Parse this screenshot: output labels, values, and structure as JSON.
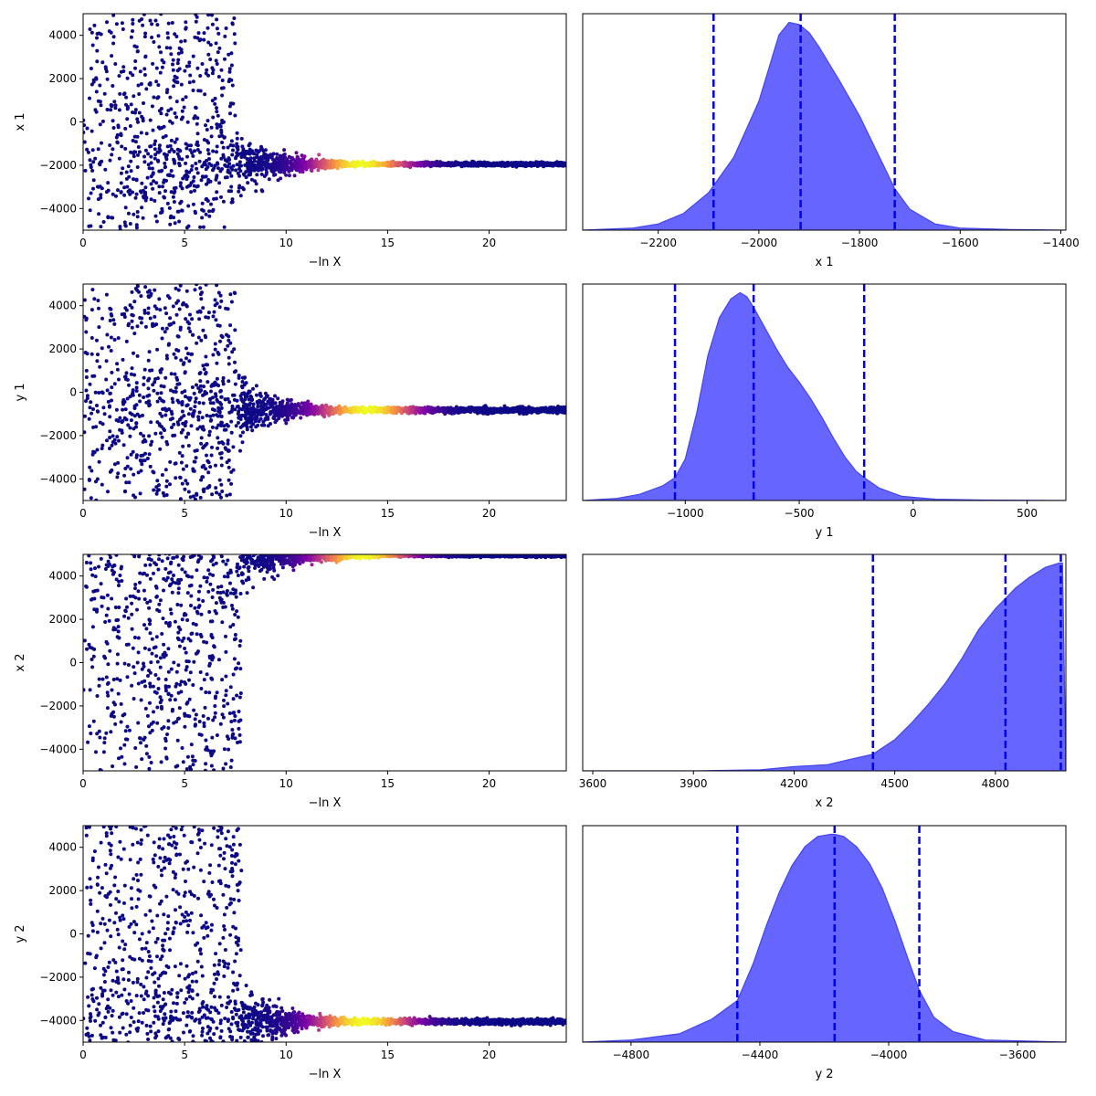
{
  "chart_data": [
    {
      "type": "scatter",
      "panel": "trace-x1",
      "xlabel": "−ln X",
      "ylabel": "x 1",
      "xlim": [
        0,
        23.8
      ],
      "ylim": [
        -5000,
        5000
      ],
      "xticks": [
        0,
        5,
        10,
        15,
        20
      ],
      "yticks": [
        -4000,
        -2000,
        0,
        2000,
        4000
      ],
      "colormap": [
        "#0d0887",
        "#7e03a8",
        "#cc4778",
        "#f89540",
        "#f0f921"
      ],
      "trace": {
        "x_max": 23.8,
        "x_branch": 7.5,
        "x_peak": 13.7,
        "converge": -1950,
        "spread_low": 3000,
        "spread_high": 7000,
        "tail_width": 80
      },
      "tick_labels_y": [
        "4000",
        "2000",
        "0",
        "−2000",
        "−4000"
      ]
    },
    {
      "type": "scatter",
      "panel": "trace-y1",
      "xlabel": "−ln X",
      "ylabel": "y 1",
      "xlim": [
        0,
        23.8
      ],
      "ylim": [
        -5000,
        5000
      ],
      "xticks": [
        0,
        5,
        10,
        15,
        20
      ],
      "yticks": [
        -4000,
        -2000,
        0,
        2000,
        4000
      ],
      "colormap": [
        "#0d0887",
        "#7e03a8",
        "#cc4778",
        "#f89540",
        "#f0f921"
      ],
      "trace": {
        "x_max": 23.8,
        "x_branch": 7.5,
        "x_peak": 14.0,
        "converge": -820,
        "spread_low": 4200,
        "spread_high": 5800,
        "tail_width": 120
      },
      "tick_labels_y": [
        "4000",
        "2000",
        "0",
        "−2000",
        "−4000"
      ]
    },
    {
      "type": "scatter",
      "panel": "trace-x2",
      "xlabel": "−ln X",
      "ylabel": "x 2",
      "xlim": [
        0,
        23.8
      ],
      "ylim": [
        -5000,
        5000
      ],
      "xticks": [
        0,
        5,
        10,
        15,
        20
      ],
      "yticks": [
        -4000,
        -2000,
        0,
        2000,
        4000
      ],
      "colormap": [
        "#0d0887",
        "#7e03a8",
        "#cc4778",
        "#f89540",
        "#f0f921"
      ],
      "trace": {
        "x_max": 23.8,
        "x_branch": 7.8,
        "x_peak": 13.8,
        "converge": 4950,
        "spread_low": 9900,
        "spread_high": 100,
        "tail_width": 60
      },
      "tick_labels_y": [
        "4000",
        "2000",
        "0",
        "−2000",
        "−4000"
      ]
    },
    {
      "type": "scatter",
      "panel": "trace-y2",
      "xlabel": "−ln X",
      "ylabel": "y 2",
      "xlim": [
        0,
        23.8
      ],
      "ylim": [
        -5000,
        5000
      ],
      "xticks": [
        0,
        5,
        10,
        15,
        20
      ],
      "yticks": [
        -4000,
        -2000,
        0,
        2000,
        4000
      ],
      "colormap": [
        "#0d0887",
        "#7e03a8",
        "#cc4778",
        "#f89540",
        "#f0f921"
      ],
      "trace": {
        "x_max": 23.8,
        "x_branch": 7.8,
        "x_peak": 13.8,
        "converge": -4050,
        "spread_low": 950,
        "spread_high": 9000,
        "tail_width": 120
      },
      "tick_labels_y": [
        "4000",
        "2000",
        "0",
        "−2000",
        "−4000"
      ]
    },
    {
      "type": "area",
      "panel": "posterior-x1",
      "xlabel": "x 1",
      "xlim": [
        -2350,
        -1390
      ],
      "xticks": [
        -2200,
        -2000,
        -1800,
        -1600,
        -1400
      ],
      "tick_labels_x": [
        "−2200",
        "−2000",
        "−1800",
        "−1600",
        "−1400"
      ],
      "fill_color": "#6666ff",
      "line_color": "#4444ee",
      "quantile_color": "#0000ee",
      "quantiles": [
        -2090,
        -1917,
        -1730
      ],
      "density": {
        "x": [
          -2350,
          -2250,
          -2200,
          -2150,
          -2100,
          -2050,
          -2000,
          -1980,
          -1960,
          -1940,
          -1920,
          -1900,
          -1880,
          -1860,
          -1840,
          -1800,
          -1760,
          -1730,
          -1700,
          -1650,
          -1600,
          -1500,
          -1390
        ],
        "y": [
          0.0,
          0.01,
          0.03,
          0.08,
          0.18,
          0.35,
          0.62,
          0.78,
          0.94,
          1.0,
          0.99,
          0.95,
          0.88,
          0.8,
          0.72,
          0.55,
          0.35,
          0.2,
          0.1,
          0.03,
          0.01,
          0.003,
          0.0
        ]
      }
    },
    {
      "type": "area",
      "panel": "posterior-y1",
      "xlabel": "y 1",
      "xlim": [
        -1450,
        670
      ],
      "xticks": [
        -1000,
        -500,
        0,
        500
      ],
      "tick_labels_x": [
        "−1000",
        "−500",
        "0",
        "500"
      ],
      "fill_color": "#6666ff",
      "line_color": "#4444ee",
      "quantile_color": "#0000ee",
      "quantiles": [
        -1045,
        -700,
        -215
      ],
      "density": {
        "x": [
          -1450,
          -1300,
          -1200,
          -1100,
          -1045,
          -1000,
          -950,
          -900,
          -850,
          -800,
          -760,
          -730,
          -700,
          -650,
          -600,
          -550,
          -500,
          -450,
          -400,
          -350,
          -300,
          -250,
          -215,
          -150,
          -50,
          100,
          300,
          670
        ],
        "y": [
          0.0,
          0.01,
          0.03,
          0.07,
          0.11,
          0.2,
          0.42,
          0.7,
          0.88,
          0.97,
          1.0,
          0.98,
          0.93,
          0.83,
          0.73,
          0.64,
          0.57,
          0.49,
          0.4,
          0.3,
          0.21,
          0.14,
          0.11,
          0.06,
          0.02,
          0.006,
          0.002,
          0.0
        ]
      }
    },
    {
      "type": "area",
      "panel": "posterior-x2",
      "xlabel": "x 2",
      "xlim": [
        3570,
        5010
      ],
      "xticks": [
        3600,
        3900,
        4200,
        4500,
        4800
      ],
      "tick_labels_x": [
        "3600",
        "3900",
        "4200",
        "4500",
        "4800"
      ],
      "fill_color": "#6666ff",
      "line_color": "#4444ee",
      "quantile_color": "#0000ee",
      "quantiles": [
        4435,
        4830,
        4995
      ],
      "density": {
        "x": [
          3570,
          3900,
          4100,
          4200,
          4300,
          4380,
          4435,
          4500,
          4550,
          4600,
          4650,
          4700,
          4750,
          4800,
          4830,
          4860,
          4900,
          4950,
          4990,
          5000,
          5010
        ],
        "y": [
          0.0,
          0.0,
          0.005,
          0.02,
          0.03,
          0.06,
          0.08,
          0.15,
          0.23,
          0.32,
          0.42,
          0.54,
          0.68,
          0.78,
          0.83,
          0.88,
          0.93,
          0.98,
          1.0,
          1.0,
          0.0
        ]
      }
    },
    {
      "type": "area",
      "panel": "posterior-y2",
      "xlabel": "y 2",
      "xlim": [
        -4950,
        -3450
      ],
      "xticks": [
        -4800,
        -4400,
        -4000,
        -3600
      ],
      "tick_labels_x": [
        "−4800",
        "−4400",
        "−4000",
        "−3600"
      ],
      "fill_color": "#6666ff",
      "line_color": "#4444ee",
      "quantile_color": "#0000ee",
      "quantiles": [
        -4470,
        -4168,
        -3905
      ],
      "density": {
        "x": [
          -4950,
          -4800,
          -4650,
          -4550,
          -4470,
          -4420,
          -4380,
          -4340,
          -4300,
          -4260,
          -4220,
          -4180,
          -4168,
          -4140,
          -4100,
          -4060,
          -4020,
          -3980,
          -3940,
          -3905,
          -3860,
          -3800,
          -3700,
          -3450
        ],
        "y": [
          0.0,
          0.01,
          0.04,
          0.11,
          0.2,
          0.38,
          0.56,
          0.72,
          0.85,
          0.94,
          0.99,
          1.0,
          1.0,
          0.99,
          0.94,
          0.86,
          0.74,
          0.58,
          0.4,
          0.25,
          0.12,
          0.05,
          0.01,
          0.0
        ]
      }
    }
  ]
}
